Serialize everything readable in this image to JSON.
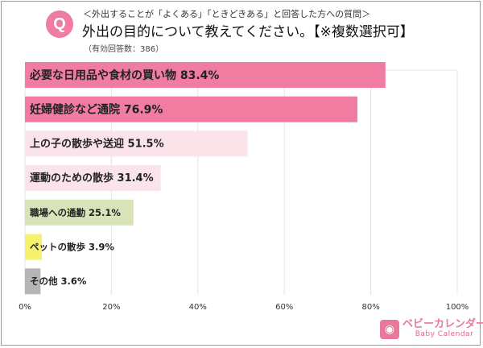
{
  "header": {
    "badge": "Q",
    "subtitle": "＜外出することが「よくある」「ときどきある」と回答した方への質問＞",
    "title": "外出の目的について教えてください。【※複数選択可】",
    "sample": "（有効回答数：386）"
  },
  "chart_data": {
    "type": "bar",
    "orientation": "horizontal",
    "title": "外出の目的について教えてください。【※複数選択可】",
    "categories": [
      "必要な日用品や食材の買い物",
      "妊婦健診など通院",
      "上の子の散歩や送迎",
      "運動のための散歩",
      "職場への通勤",
      "ペットの散歩",
      "その他"
    ],
    "values": [
      83.4,
      76.9,
      51.5,
      31.4,
      25.1,
      3.9,
      3.6
    ],
    "labels": [
      "必要な日用品や食材の買い物 83.4%",
      "妊婦健診など通院 76.9%",
      "上の子の散歩や送迎  51.5%",
      "運動のための散歩 31.4%",
      "職場への通勤 25.1%",
      "ペットの散歩 3.9%",
      "その他  3.6%"
    ],
    "colors": [
      "#f07ca2",
      "#f07ca2",
      "#fbe3ea",
      "#fbe3ea",
      "#d8e3b8",
      "#f6f26e",
      "#b5b5b5"
    ],
    "xlim": [
      0,
      100
    ],
    "xticks": [
      "0%",
      "20%",
      "40%",
      "60%",
      "80%",
      "100%"
    ],
    "grid": true,
    "xlabel": "",
    "ylabel": ""
  },
  "logo": {
    "main": "ベビーカレンダー",
    "sub": "Baby Calendar"
  }
}
